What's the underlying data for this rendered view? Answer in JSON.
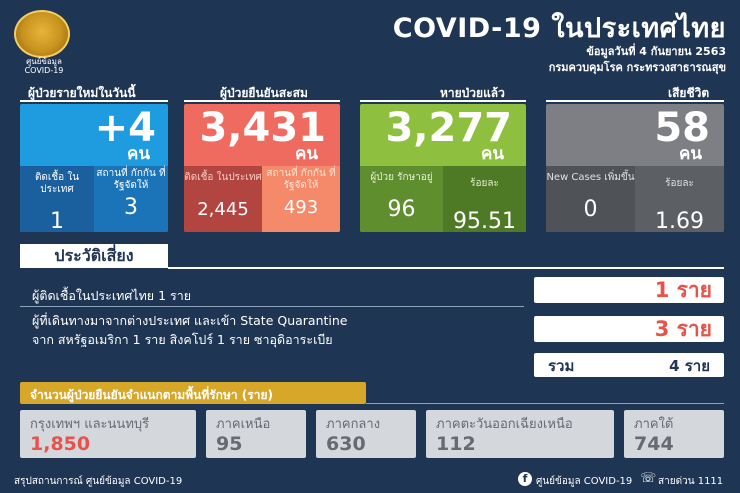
{
  "header": {
    "logo_caption_1": "ศูนย์ข้อมูล",
    "logo_caption_2": "COVID-19",
    "title": "COVID-19 ในประเทศไทย",
    "date": "ข้อมูลวันที่ 4 กันยายน 2563",
    "source": "กรมควบคุมโรค กระทรวงสาธารณสุข"
  },
  "new_cases": {
    "label": "ผู้ป่วยรายใหม่ในวันนี้",
    "value": "+4",
    "unit": "คน",
    "domestic_label": "ติดเชื้อ ในประเทศ",
    "domestic_value": "1",
    "quarantine_label": "สถานที่ กักกัน ที่รัฐจัดให้",
    "quarantine_value": "3",
    "color": "#1f9be0"
  },
  "confirmed": {
    "label": "ผู้ป่วยยืนยันสะสม",
    "value": "3,431",
    "unit": "คน",
    "domestic_label": "ติดเชื้อ ในประเทศ",
    "domestic_value": "2,445",
    "quarantine_label": "สถานที่ กักกัน ที่รัฐจัดให้",
    "quarantine_value": "493",
    "color": "#ef6b60"
  },
  "recovered": {
    "label": "หายป่วยแล้ว",
    "value": "3,277",
    "unit": "คน",
    "hospital_label": "ผู้ป่วย รักษาอยู่",
    "hospital_value": "96",
    "percent_label": "ร้อยละ",
    "percent_value": "95.51",
    "color": "#8fbf3f"
  },
  "deaths": {
    "label": "เสียชีวิต",
    "value": "58",
    "unit": "คน",
    "new_label": "New Cases เพิ่มขึ้น",
    "new_value": "0",
    "percent_label": "ร้อยละ",
    "percent_value": "1.69",
    "color": "#7d7f84"
  },
  "risk": {
    "heading": "ประวัติเสี่ยง",
    "row1_text": "ผู้ติดเชื้อในประเทศไทย 1 ราย",
    "row1_value": "1 ราย",
    "row2_text_1": "ผู้ที่เดินทางมาจากต่างประเทศ และเข้า State Quarantine",
    "row2_text_2": "จาก สหรัฐอเมริกา 1 ราย สิงคโปร์ 1 ราย ซาอุดิอาระเบีย",
    "row2_value": "3 ราย",
    "total_label": "รวม",
    "total_value": "4 ราย"
  },
  "regions": {
    "heading": "จำนวนผู้ป่วยยืนยันจำแนกตามพื้นที่รักษา (ราย)",
    "items": [
      {
        "name": "กรุงเทพฯ และนนทบุรี",
        "value": "1,850"
      },
      {
        "name": "ภาคเหนือ",
        "value": "95"
      },
      {
        "name": "ภาคกลาง",
        "value": "630"
      },
      {
        "name": "ภาคตะวันออกเฉียงเหนือ",
        "value": "112"
      },
      {
        "name": "ภาคใต้",
        "value": "744"
      }
    ]
  },
  "footer": {
    "left": "สรุปสถานการณ์ ศูนย์ข้อมูล COVID-19",
    "facebook": "ศูนย์ข้อมูล COVID-19",
    "hotline": "สายด่วน 1111"
  }
}
